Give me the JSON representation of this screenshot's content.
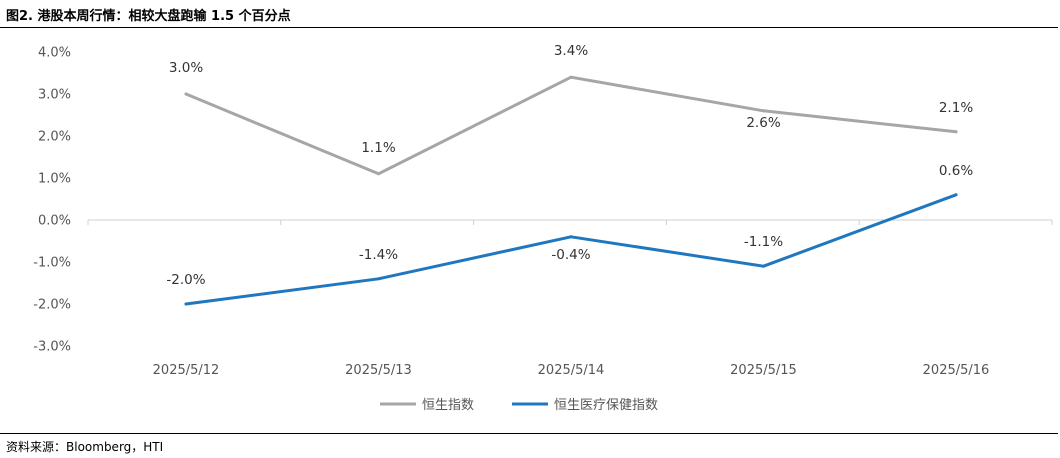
{
  "figure": {
    "title": "图2.  港股本周行情：相较大盘跑输 1.5 个百分点",
    "source": "资料来源：Bloomberg，HTI"
  },
  "chart_data": {
    "type": "line",
    "categories": [
      "2025/5/12",
      "2025/5/13",
      "2025/5/14",
      "2025/5/15",
      "2025/5/16"
    ],
    "series": [
      {
        "name": "恒生指数",
        "color": "#a6a6a6",
        "values": [
          3.0,
          1.1,
          3.4,
          2.6,
          2.1
        ],
        "labels": [
          "3.0%",
          "1.1%",
          "3.4%",
          "2.6%",
          "2.1%"
        ]
      },
      {
        "name": "恒生医疗保健指数",
        "color": "#1f77c0",
        "values": [
          -2.0,
          -1.4,
          -0.4,
          -1.1,
          0.6
        ],
        "labels": [
          "-2.0%",
          "-1.4%",
          "-0.4%",
          "-1.1%",
          "0.6%"
        ]
      }
    ],
    "yticks": [
      "4.0%",
      "3.0%",
      "2.0%",
      "1.0%",
      "0.0%",
      "-1.0%",
      "-2.0%",
      "-3.0%"
    ],
    "ylim": [
      -3.0,
      4.0
    ],
    "grid": false,
    "legend_position": "bottom"
  }
}
